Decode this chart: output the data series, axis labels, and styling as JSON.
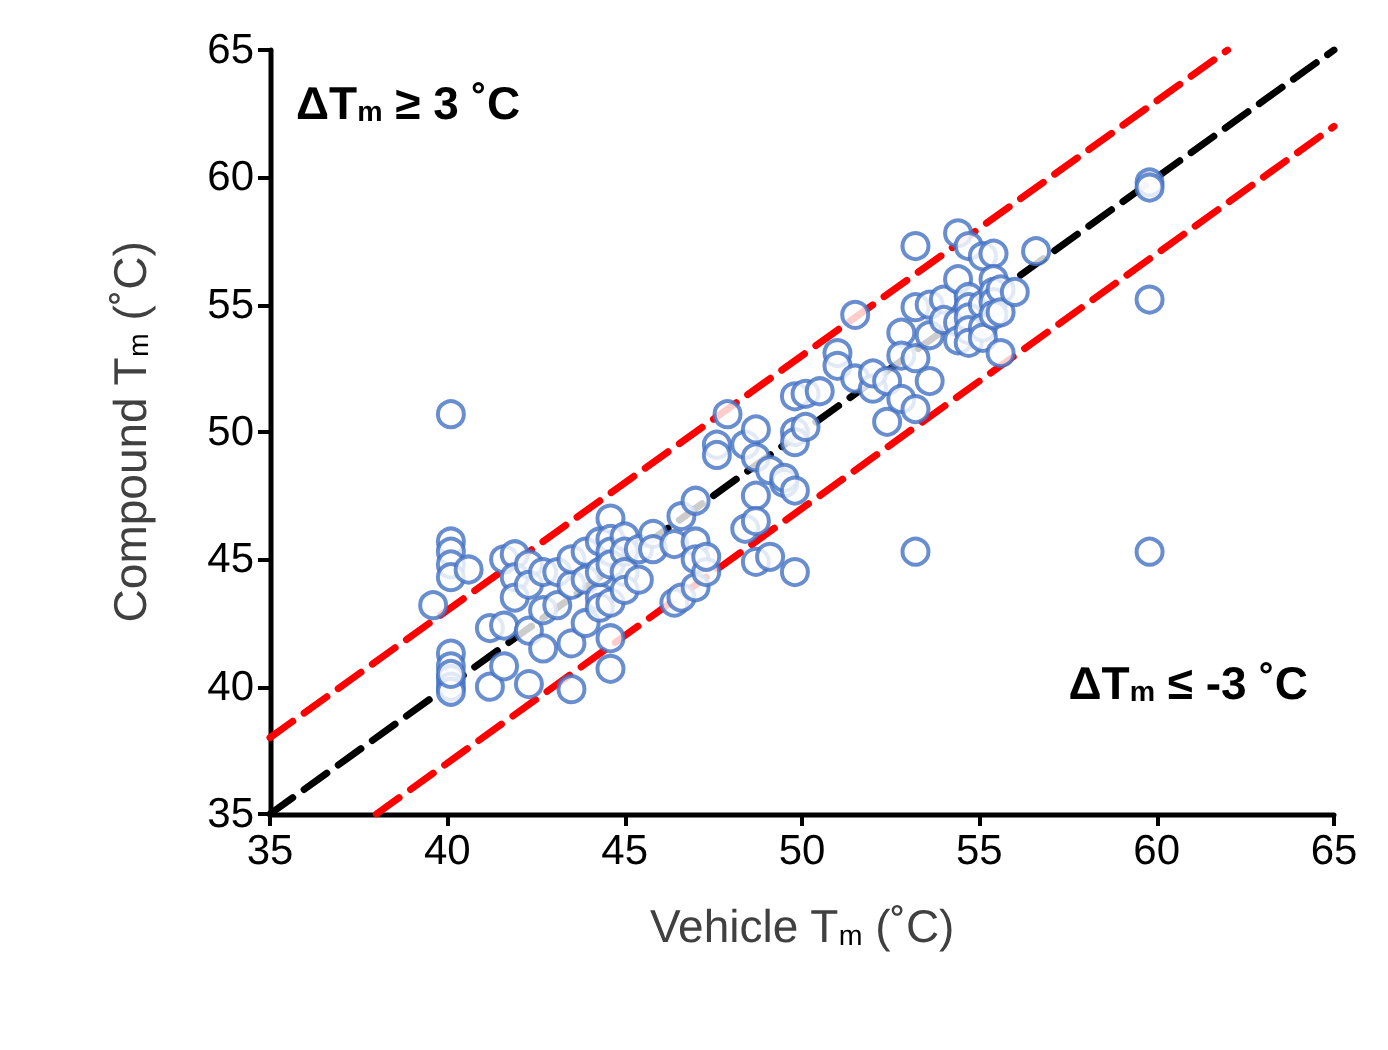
{
  "chart_data": {
    "type": "scatter",
    "xlabel": "Vehicle T$_{m}$ (˚C)",
    "ylabel": "Compound T$_{m}$ (˚C)",
    "annotations": [
      "ΔT$_{m}$ ≥ 3 ˚C",
      "ΔT$_{m}$ ≤ -3 ˚C"
    ],
    "xlim": [
      35,
      65
    ],
    "ylim": [
      35,
      65
    ],
    "xticks": [
      35,
      40,
      45,
      50,
      55,
      60,
      65
    ],
    "yticks": [
      35,
      40,
      45,
      50,
      55,
      60,
      65
    ],
    "grid": false,
    "marker": "circle",
    "series": [
      {
        "type": "line",
        "color": "#000000",
        "line_style": "dashed",
        "marker": "none",
        "x": [
          35,
          65
        ],
        "values": [
          35,
          65
        ]
      },
      {
        "type": "line",
        "color": "#ff0000",
        "line_style": "dashed",
        "marker": "none",
        "x": [
          35,
          62
        ],
        "values": [
          38,
          65
        ]
      },
      {
        "type": "line",
        "color": "#ff0000",
        "line_style": "dashed",
        "marker": "none",
        "x": [
          38,
          65
        ],
        "values": [
          35,
          62
        ]
      },
      {
        "color": "#4472c4",
        "x": [
          40.1,
          40.1,
          40.1,
          40.1,
          40.1,
          40.1,
          40.1,
          40.1,
          40.1,
          40.1,
          40.1,
          39.6,
          40.6,
          41.2,
          41.2,
          41.6,
          41.6,
          41.6,
          41.9,
          41.9,
          41.9,
          42.3,
          42.3,
          42.3,
          42.3,
          42.7,
          42.7,
          42.7,
          43.1,
          43.1,
          43.5,
          43.5,
          43.5,
          43.5,
          43.9,
          43.9,
          43.9,
          44.3,
          44.3,
          44.3,
          44.3,
          44.6,
          44.6,
          44.6,
          44.6,
          44.6,
          44.6,
          44.6,
          45.0,
          45.0,
          45.0,
          45.0,
          45.4,
          45.4,
          45.8,
          45.8,
          46.4,
          46.4,
          46.6,
          46.6,
          47.0,
          47.0,
          47.0,
          47.0,
          47.3,
          47.3,
          47.6,
          47.6,
          47.9,
          48.4,
          48.4,
          48.7,
          48.7,
          48.7,
          48.7,
          48.7,
          49.1,
          49.1,
          49.5,
          49.5,
          49.8,
          49.8,
          49.8,
          49.8,
          49.8,
          50.1,
          50.1,
          50.5,
          51.0,
          51.0,
          51.5,
          51.5,
          52.0,
          52.0,
          52.4,
          52.4,
          52.8,
          52.8,
          52.8,
          53.2,
          53.2,
          53.2,
          53.2,
          53.2,
          53.6,
          53.6,
          53.6,
          54.0,
          54.0,
          54.4,
          54.4,
          54.4,
          54.4,
          54.7,
          54.7,
          54.7,
          54.7,
          54.7,
          54.7,
          55.1,
          55.1,
          55.1,
          55.1,
          55.4,
          55.4,
          55.4,
          55.4,
          55.4,
          55.6,
          55.6,
          55.6,
          56.0,
          56.6,
          59.8,
          59.8,
          59.8,
          59.8
        ],
        "values": [
          50.7,
          45.7,
          45.3,
          44.8,
          44.3,
          41.3,
          40.8,
          40.3,
          40.0,
          39.8,
          40.5,
          43.2,
          44.6,
          42.3,
          40.0,
          42.4,
          40.8,
          45.0,
          45.2,
          44.3,
          43.5,
          44.8,
          44.0,
          42.2,
          40.1,
          43.0,
          41.5,
          44.5,
          44.5,
          43.2,
          44.0,
          41.7,
          39.9,
          45.0,
          45.3,
          44.2,
          42.5,
          45.7,
          43.5,
          43.1,
          44.5,
          46.6,
          45.8,
          45.3,
          44.8,
          43.3,
          41.9,
          40.7,
          45.9,
          45.3,
          44.5,
          43.8,
          45.4,
          44.2,
          46.0,
          45.4,
          45.6,
          43.3,
          43.5,
          46.7,
          47.3,
          45.7,
          45.0,
          43.9,
          44.5,
          45.1,
          49.5,
          49.1,
          50.7,
          46.2,
          49.5,
          50.1,
          49.0,
          47.5,
          44.9,
          46.5,
          48.5,
          45.1,
          48.0,
          48.2,
          51.4,
          50.0,
          49.6,
          47.7,
          44.5,
          51.5,
          50.2,
          51.6,
          53.1,
          52.6,
          54.6,
          52.1,
          51.7,
          52.3,
          52.0,
          50.4,
          53.9,
          53.0,
          51.3,
          57.3,
          54.9,
          52.9,
          50.9,
          45.3,
          55.0,
          53.8,
          52.0,
          55.2,
          54.4,
          57.8,
          56.0,
          54.3,
          53.6,
          57.3,
          55.3,
          54.9,
          54.5,
          54.0,
          53.5,
          56.9,
          55.0,
          54.1,
          53.7,
          57.0,
          56.0,
          55.5,
          55.1,
          54.6,
          55.6,
          54.7,
          53.1,
          55.5,
          57.1,
          59.8,
          59.6,
          55.2,
          45.3
        ]
      }
    ]
  }
}
